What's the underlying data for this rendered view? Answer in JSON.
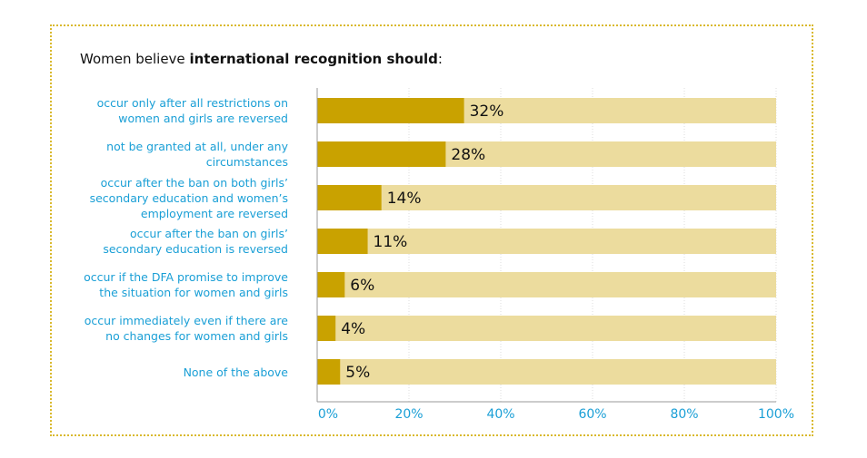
{
  "chart_data": {
    "type": "bar",
    "orientation": "horizontal",
    "title": [
      "Women believe",
      "international recognition should",
      ":"
    ],
    "categories": [
      "occur only after all restrictions on women and girls are reversed",
      "not be granted at all, under any circumstances",
      "occur after the ban on both girls’ secondary education and women’s employment are reversed",
      "occur after the ban on girls’ secondary education is reversed",
      "occur if the DFA promise to improve the situation for women and girls",
      "occur immediately even if there are no changes for women and girls",
      "None of the above"
    ],
    "values": [
      32,
      28,
      14,
      11,
      6,
      4,
      5
    ],
    "value_labels": [
      "32%",
      "28%",
      "14%",
      "11%",
      "6%",
      "4%",
      "5%"
    ],
    "color": "#c9a200",
    "background_color": "#ecdc9e",
    "xlim": [
      0,
      100
    ],
    "xticks": [
      {
        "value": 0,
        "label": "0%"
      },
      {
        "value": 20,
        "label": "20%"
      },
      {
        "value": 40,
        "label": "40%"
      },
      {
        "value": 60,
        "label": "60%"
      },
      {
        "value": 80,
        "label": "80%"
      },
      {
        "value": 100,
        "label": "100%"
      }
    ],
    "grid": true
  }
}
